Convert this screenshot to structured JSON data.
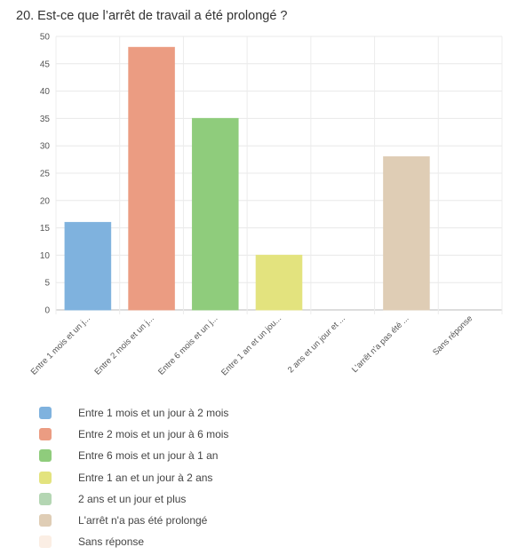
{
  "chart_data": {
    "type": "bar",
    "title": "20. Est-ce que l’arrêt de travail a été prolongé ?",
    "categories": [
      "Entre 1 mois et un jour à 2 mois",
      "Entre 2 mois et un jour à 6 mois",
      "Entre 6 mois et un jour à 1 an",
      "Entre 1 an et un jour à 2 ans",
      "2 ans et un jour et plus",
      "L'arrêt n'a pas été prolongé",
      "Sans réponse"
    ],
    "tick_labels": [
      "Entre 1 mois et un j...",
      "Entre 2 mois et un j...",
      "Entre 6 mois et un j...",
      "Entre 1 an et un jou...",
      "2 ans et un jour et ...",
      "L'arrêt n'a pas été ...",
      "Sans réponse"
    ],
    "values": [
      16,
      48,
      35,
      10,
      0,
      28,
      0
    ],
    "colors": [
      "#7fb2de",
      "#eb9c82",
      "#8fcc7c",
      "#e3e37e",
      "#b4d6b3",
      "#dfcdb5",
      "#fbeee4"
    ],
    "ylim": [
      0,
      50
    ],
    "yticks": [
      0,
      5,
      10,
      15,
      20,
      25,
      30,
      35,
      40,
      45,
      50
    ],
    "grid": true,
    "legend_position": "bottom"
  }
}
